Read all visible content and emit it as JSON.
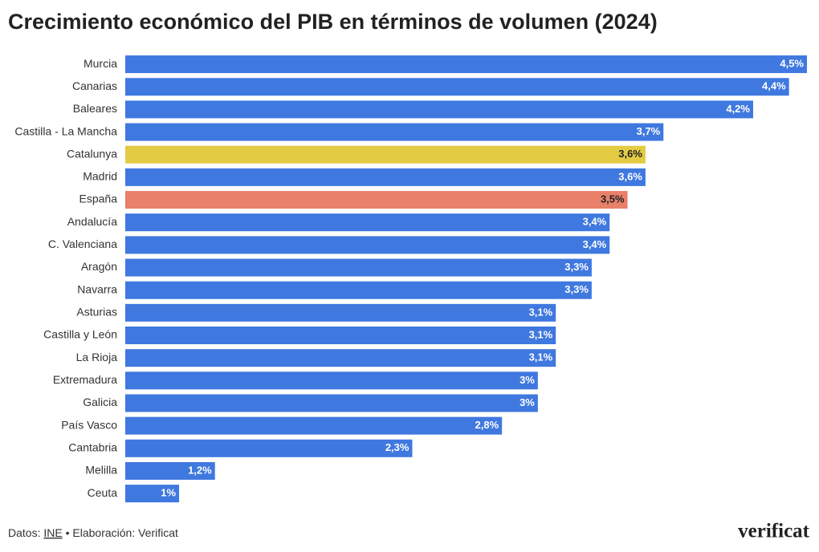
{
  "chart_data": {
    "type": "hbar",
    "title": "Crecimiento económico del PIB en términos de volumen (2024)",
    "categories": [
      "Murcia",
      "Canarias",
      "Baleares",
      "Castilla - La Mancha",
      "Catalunya",
      "Madrid",
      "España",
      "Andalucía",
      "C. Valenciana",
      "Aragón",
      "Navarra",
      "Asturias",
      "Castilla y León",
      "La Rioja",
      "Extremadura",
      "Galicia",
      "País Vasco",
      "Cantabria",
      "Melilla",
      "Ceuta"
    ],
    "values": [
      4.5,
      4.4,
      4.2,
      3.7,
      3.6,
      3.6,
      3.5,
      3.4,
      3.4,
      3.3,
      3.3,
      3.1,
      3.1,
      3.1,
      3,
      3,
      2.8,
      2.3,
      1.2,
      1
    ],
    "value_labels": [
      "4,5%",
      "4,4%",
      "4,2%",
      "3,7%",
      "3,6%",
      "3,6%",
      "3,5%",
      "3,4%",
      "3,4%",
      "3,3%",
      "3,3%",
      "3,1%",
      "3,1%",
      "3,1%",
      "3%",
      "3%",
      "2,8%",
      "2,3%",
      "1,2%",
      "1%"
    ],
    "colors": [
      "#3f78df",
      "#3f78df",
      "#3f78df",
      "#3f78df",
      "#e3cb44",
      "#3f78df",
      "#e8806a",
      "#3f78df",
      "#3f78df",
      "#3f78df",
      "#3f78df",
      "#3f78df",
      "#3f78df",
      "#3f78df",
      "#3f78df",
      "#3f78df",
      "#3f78df",
      "#3f78df",
      "#3f78df",
      "#3f78df"
    ],
    "xlim": [
      0.7,
      4.5
    ]
  },
  "footer": {
    "prefix": "Datos:",
    "link": "INE",
    "suffix": "• Elaboración: Verificat",
    "logo": "verificat"
  }
}
